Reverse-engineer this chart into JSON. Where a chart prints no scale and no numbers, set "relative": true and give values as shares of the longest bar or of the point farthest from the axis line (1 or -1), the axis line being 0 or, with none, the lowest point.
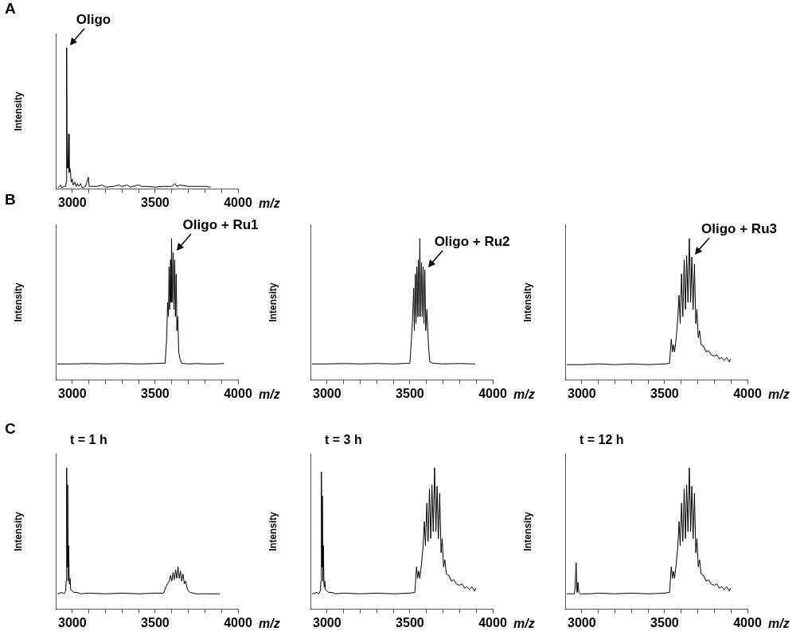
{
  "chart_data": [
    {
      "type": "line",
      "title": "A",
      "xlabel": "m/z",
      "ylabel": "Intensity",
      "relative": true,
      "xlim": [
        2900,
        4000
      ],
      "xticks": [
        3000,
        {
          "value": 3100,
          "label": null
        },
        {
          "value": 3200,
          "label": null
        },
        {
          "value": 3300,
          "label": null
        },
        {
          "value": 3400,
          "label": null
        },
        3500,
        {
          "value": 3600,
          "label": null
        },
        {
          "value": 3700,
          "label": null
        },
        {
          "value": 3800,
          "label": null
        },
        {
          "value": 3900,
          "label": null
        },
        4000
      ],
      "annotations": [
        {
          "text": "Oligo",
          "x": 2966,
          "y": 1.0
        }
      ],
      "series": [
        {
          "color": "#000000",
          "x": [
            2915,
            2930,
            2935,
            2950,
            2960,
            2963,
            2966,
            2969,
            2974,
            2978,
            2981,
            2985,
            2989,
            2993,
            3000,
            3005,
            3015,
            3022,
            3030,
            3040,
            3050,
            3060,
            3080,
            3097,
            3102,
            3120,
            3150,
            3180,
            3200,
            3250,
            3280,
            3300,
            3330,
            3350,
            3400,
            3420,
            3450,
            3500,
            3550,
            3600,
            3620,
            3630,
            3650,
            3700,
            3750,
            3800,
            3834
          ],
          "values": [
            0.01,
            0.03,
            0.01,
            0.02,
            0.02,
            0.05,
            1.0,
            0.15,
            0.15,
            0.39,
            0.12,
            0.15,
            0.13,
            0.05,
            0.07,
            0.03,
            0.05,
            0.02,
            0.04,
            0.02,
            0.04,
            0.01,
            0.02,
            0.085,
            0.02,
            0.02,
            0.02,
            0.03,
            0.015,
            0.02,
            0.03,
            0.02,
            0.03,
            0.015,
            0.03,
            0.02,
            0.02,
            0.015,
            0.02,
            0.02,
            0.04,
            0.02,
            0.03,
            0.02,
            0.02,
            0.02,
            0.015
          ]
        }
      ]
    },
    {
      "type": "line",
      "title": "B",
      "xlabel": "m/z",
      "ylabel": "Intensity",
      "relative": true,
      "xlim": [
        2900,
        4000
      ],
      "xticks": [
        3000,
        {
          "value": 3100,
          "label": null
        },
        {
          "value": 3200,
          "label": null
        },
        {
          "value": 3300,
          "label": null
        },
        {
          "value": 3400,
          "label": null
        },
        3500,
        {
          "value": 3600,
          "label": null
        },
        {
          "value": 3700,
          "label": null
        },
        {
          "value": 3800,
          "label": null
        },
        {
          "value": 3900,
          "label": null
        },
        4000
      ],
      "annotations": [
        {
          "text": "Oligo + Ru1",
          "x": 3609,
          "y": 0.9
        }
      ],
      "series": [
        {
          "color": "#000000",
          "x": [
            2910,
            3000,
            3100,
            3200,
            3300,
            3400,
            3500,
            3560,
            3570,
            3575,
            3580,
            3584,
            3588,
            3593,
            3596,
            3599,
            3603,
            3609,
            3613,
            3618,
            3622,
            3627,
            3631,
            3637,
            3642,
            3650,
            3660,
            3700,
            3750,
            3800,
            3850,
            3916
          ],
          "values": [
            0.115,
            0.115,
            0.118,
            0.115,
            0.118,
            0.115,
            0.118,
            0.12,
            0.3,
            0.55,
            0.45,
            0.8,
            0.5,
            0.85,
            0.55,
            1.0,
            0.55,
            0.9,
            0.5,
            0.85,
            0.45,
            0.75,
            0.35,
            0.45,
            0.2,
            0.15,
            0.12,
            0.115,
            0.118,
            0.115,
            0.115,
            0.118
          ]
        }
      ]
    },
    {
      "type": "line",
      "xlabel": "m/z",
      "ylabel": "Intensity",
      "relative": true,
      "xlim": [
        2900,
        4000
      ],
      "xticks": [
        3000,
        {
          "value": 3100,
          "label": null
        },
        {
          "value": 3200,
          "label": null
        },
        {
          "value": 3300,
          "label": null
        },
        {
          "value": 3400,
          "label": null
        },
        3500,
        {
          "value": 3600,
          "label": null
        },
        {
          "value": 3700,
          "label": null
        },
        {
          "value": 3800,
          "label": null
        },
        {
          "value": 3900,
          "label": null
        },
        4000
      ],
      "annotations": [
        {
          "text": "Oligo + Ru2",
          "x": 3590,
          "y": 0.78
        }
      ],
      "series": [
        {
          "color": "#000000",
          "x": [
            2910,
            3000,
            3100,
            3200,
            3300,
            3400,
            3500,
            3510,
            3517,
            3523,
            3527,
            3533,
            3537,
            3542,
            3547,
            3551,
            3556,
            3560,
            3565,
            3570,
            3575,
            3580,
            3585,
            3590,
            3596,
            3603,
            3612,
            3620,
            3640,
            3700,
            3800,
            3894
          ],
          "values": [
            0.115,
            0.115,
            0.118,
            0.115,
            0.118,
            0.115,
            0.12,
            0.3,
            0.45,
            0.65,
            0.35,
            0.75,
            0.4,
            0.8,
            0.45,
            0.85,
            0.45,
            1.0,
            0.45,
            0.83,
            0.45,
            0.8,
            0.4,
            0.78,
            0.35,
            0.5,
            0.25,
            0.13,
            0.12,
            0.115,
            0.118,
            0.115
          ]
        }
      ]
    },
    {
      "type": "line",
      "xlabel": "m/z",
      "ylabel": "Intensity",
      "relative": true,
      "xlim": [
        2900,
        4000
      ],
      "xticks": [
        3000,
        {
          "value": 3100,
          "label": null
        },
        {
          "value": 3200,
          "label": null
        },
        {
          "value": 3300,
          "label": null
        },
        {
          "value": 3400,
          "label": null
        },
        3500,
        {
          "value": 3600,
          "label": null
        },
        {
          "value": 3700,
          "label": null
        },
        {
          "value": 3800,
          "label": null
        },
        {
          "value": 3900,
          "label": null
        },
        4000
      ],
      "annotations": [
        {
          "text": "Oligo + Ru3",
          "x": 3664,
          "y": 0.87
        }
      ],
      "series": [
        {
          "color": "#000000",
          "x": [
            2910,
            3000,
            3100,
            3200,
            3300,
            3400,
            3500,
            3530,
            3540,
            3547,
            3553,
            3560,
            3570,
            3580,
            3587,
            3594,
            3602,
            3610,
            3618,
            3626,
            3633,
            3641,
            3649,
            3657,
            3664,
            3672,
            3680,
            3688,
            3695,
            3703,
            3711,
            3720,
            3735,
            3750,
            3765,
            3780,
            3800,
            3815,
            3830,
            3845,
            3860,
            3875,
            3890,
            3898
          ],
          "values": [
            0.11,
            0.11,
            0.115,
            0.11,
            0.115,
            0.11,
            0.115,
            0.12,
            0.29,
            0.2,
            0.25,
            0.2,
            0.3,
            0.45,
            0.6,
            0.4,
            0.75,
            0.45,
            0.85,
            0.5,
            0.88,
            0.55,
            1.0,
            0.55,
            0.87,
            0.5,
            0.82,
            0.4,
            0.5,
            0.3,
            0.35,
            0.25,
            0.24,
            0.2,
            0.21,
            0.18,
            0.17,
            0.18,
            0.15,
            0.16,
            0.14,
            0.16,
            0.13,
            0.15
          ]
        }
      ]
    },
    {
      "type": "line",
      "title": "C",
      "subtitle": "t = 1 h",
      "xlabel": "m/z",
      "ylabel": "Intensity",
      "relative": true,
      "xlim": [
        2900,
        4000
      ],
      "xticks": [
        3000,
        {
          "value": 3100,
          "label": null
        },
        {
          "value": 3200,
          "label": null
        },
        {
          "value": 3300,
          "label": null
        },
        {
          "value": 3400,
          "label": null
        },
        3500,
        {
          "value": 3600,
          "label": null
        },
        {
          "value": 3700,
          "label": null
        },
        {
          "value": 3800,
          "label": null
        },
        {
          "value": 3900,
          "label": null
        },
        4000
      ],
      "series": [
        {
          "color": "#000000",
          "x": [
            2910,
            2940,
            2950,
            2960,
            2963,
            2966,
            2969,
            2972,
            2975,
            2978,
            2982,
            2986,
            2990,
            3000,
            3010,
            3030,
            3050,
            3100,
            3200,
            3300,
            3400,
            3500,
            3550,
            3570,
            3585,
            3593,
            3600,
            3608,
            3615,
            3623,
            3630,
            3638,
            3645,
            3653,
            3660,
            3668,
            3676,
            3684,
            3695,
            3710,
            3750,
            3800,
            3890
          ],
          "values": [
            0.11,
            0.12,
            0.11,
            0.13,
            0.2,
            1.0,
            0.3,
            0.88,
            0.2,
            0.45,
            0.18,
            0.22,
            0.14,
            0.13,
            0.12,
            0.12,
            0.11,
            0.115,
            0.11,
            0.115,
            0.11,
            0.115,
            0.115,
            0.17,
            0.2,
            0.24,
            0.2,
            0.26,
            0.21,
            0.28,
            0.22,
            0.3,
            0.22,
            0.27,
            0.2,
            0.25,
            0.18,
            0.2,
            0.14,
            0.12,
            0.11,
            0.11,
            0.11
          ]
        }
      ]
    },
    {
      "type": "line",
      "subtitle": "t = 3 h",
      "xlabel": "m/z",
      "ylabel": "Intensity",
      "relative": true,
      "xlim": [
        2900,
        4000
      ],
      "xticks": [
        3000,
        {
          "value": 3100,
          "label": null
        },
        {
          "value": 3200,
          "label": null
        },
        {
          "value": 3300,
          "label": null
        },
        {
          "value": 3400,
          "label": null
        },
        3500,
        {
          "value": 3600,
          "label": null
        },
        {
          "value": 3700,
          "label": null
        },
        {
          "value": 3800,
          "label": null
        },
        {
          "value": 3900,
          "label": null
        },
        4000
      ],
      "series": [
        {
          "color": "#000000",
          "x": [
            2910,
            2940,
            2950,
            2960,
            2963,
            2966,
            2969,
            2972,
            2975,
            2978,
            2982,
            2986,
            2990,
            3000,
            3010,
            3030,
            3050,
            3100,
            3200,
            3300,
            3400,
            3500,
            3530,
            3540,
            3547,
            3553,
            3560,
            3570,
            3580,
            3587,
            3594,
            3602,
            3610,
            3618,
            3626,
            3633,
            3641,
            3649,
            3657,
            3664,
            3672,
            3680,
            3688,
            3695,
            3703,
            3711,
            3720,
            3735,
            3750,
            3765,
            3780,
            3800,
            3815,
            3830,
            3845,
            3860,
            3875,
            3890,
            3898
          ],
          "values": [
            0.11,
            0.12,
            0.11,
            0.13,
            0.2,
            0.97,
            0.3,
            0.8,
            0.2,
            0.45,
            0.16,
            0.2,
            0.14,
            0.13,
            0.12,
            0.12,
            0.11,
            0.115,
            0.11,
            0.115,
            0.11,
            0.115,
            0.12,
            0.3,
            0.22,
            0.27,
            0.22,
            0.32,
            0.45,
            0.62,
            0.45,
            0.75,
            0.48,
            0.85,
            0.5,
            0.88,
            0.55,
            1.0,
            0.55,
            0.87,
            0.5,
            0.82,
            0.4,
            0.5,
            0.3,
            0.35,
            0.25,
            0.24,
            0.2,
            0.21,
            0.18,
            0.17,
            0.18,
            0.15,
            0.16,
            0.14,
            0.16,
            0.13,
            0.15
          ]
        }
      ]
    },
    {
      "type": "line",
      "subtitle": "t = 12 h",
      "xlabel": "m/z",
      "ylabel": "Intensity",
      "relative": true,
      "xlim": [
        2900,
        4000
      ],
      "xticks": [
        3000,
        {
          "value": 3100,
          "label": null
        },
        {
          "value": 3200,
          "label": null
        },
        {
          "value": 3300,
          "label": null
        },
        {
          "value": 3400,
          "label": null
        },
        3500,
        {
          "value": 3600,
          "label": null
        },
        {
          "value": 3700,
          "label": null
        },
        {
          "value": 3800,
          "label": null
        },
        {
          "value": 3900,
          "label": null
        },
        4000
      ],
      "series": [
        {
          "color": "#000000",
          "x": [
            2910,
            2940,
            2955,
            2960,
            2966,
            2971,
            2973,
            2977,
            2983,
            2990,
            3000,
            3050,
            3100,
            3200,
            3300,
            3400,
            3500,
            3530,
            3540,
            3547,
            3553,
            3560,
            3570,
            3580,
            3587,
            3594,
            3602,
            3610,
            3618,
            3626,
            3633,
            3641,
            3649,
            3657,
            3664,
            3672,
            3680,
            3688,
            3695,
            3703,
            3711,
            3720,
            3735,
            3750,
            3765,
            3780,
            3800,
            3815,
            3830,
            3845,
            3860,
            3875,
            3890,
            3898
          ],
          "values": [
            0.11,
            0.11,
            0.11,
            0.15,
            0.33,
            0.12,
            0.12,
            0.19,
            0.12,
            0.11,
            0.11,
            0.11,
            0.115,
            0.11,
            0.115,
            0.11,
            0.115,
            0.12,
            0.3,
            0.22,
            0.27,
            0.22,
            0.32,
            0.45,
            0.62,
            0.45,
            0.75,
            0.48,
            0.85,
            0.5,
            0.88,
            0.55,
            1.0,
            0.55,
            0.87,
            0.5,
            0.82,
            0.4,
            0.5,
            0.3,
            0.35,
            0.25,
            0.24,
            0.2,
            0.21,
            0.18,
            0.17,
            0.18,
            0.15,
            0.16,
            0.14,
            0.16,
            0.13,
            0.15
          ]
        }
      ]
    }
  ]
}
